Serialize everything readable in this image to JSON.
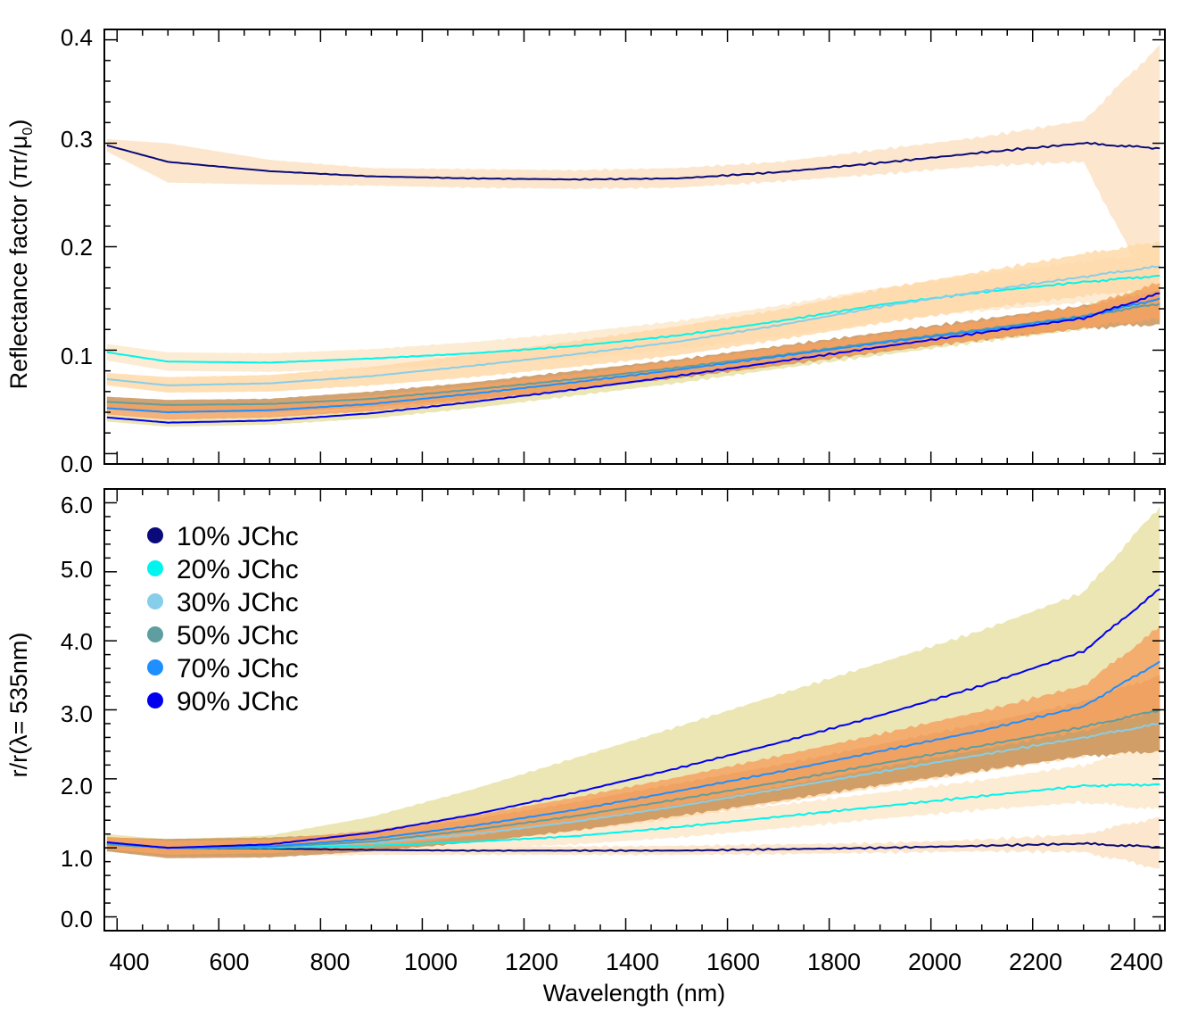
{
  "figure": {
    "xlabel": "Wavelength (nm)",
    "xticks": [
      "400",
      "600",
      "800",
      "1000",
      "1200",
      "1400",
      "1600",
      "1800",
      "2000",
      "2200",
      "2400"
    ]
  },
  "panels": {
    "top": {
      "ylabel_main": "Reflectance factor (πr/μ",
      "ylabel_sub": "0",
      "ylabel_end": ")",
      "yticks": [
        "0.0",
        "0.1",
        "0.2",
        "0.3",
        "0.4"
      ]
    },
    "bottom": {
      "ylabel": "r/r(λ= 535nm)",
      "yticks": [
        "0.0",
        "1.0",
        "2.0",
        "3.0",
        "4.0",
        "5.0",
        "6.0"
      ]
    }
  },
  "legend": {
    "items": [
      {
        "label": "10% JChc",
        "color": "#0a0a7a"
      },
      {
        "label": "20% JChc",
        "color": "#00f5ee"
      },
      {
        "label": "30% JChc",
        "color": "#87ceeb"
      },
      {
        "label": "50% JChc",
        "color": "#5f9ea0"
      },
      {
        "label": "70% JChc",
        "color": "#1e8fff"
      },
      {
        "label": "90% JChc",
        "color": "#0000ee"
      }
    ]
  },
  "chart_data": [
    {
      "type": "line",
      "title": "",
      "xlabel": "Wavelength (nm)",
      "ylabel": "Reflectance factor (πr/μ0)",
      "xlim": [
        375,
        2460
      ],
      "ylim": [
        -0.01,
        0.41
      ],
      "x": [
        380,
        500,
        700,
        900,
        1100,
        1300,
        1500,
        1700,
        1900,
        2100,
        2300,
        2450
      ],
      "series": [
        {
          "name": "10% JChc",
          "color": "#0a0a7a",
          "values": [
            0.298,
            0.282,
            0.273,
            0.268,
            0.266,
            0.265,
            0.266,
            0.272,
            0.281,
            0.291,
            0.3,
            0.295
          ],
          "band_lower": [
            0.292,
            0.262,
            0.26,
            0.259,
            0.257,
            0.256,
            0.257,
            0.263,
            0.27,
            0.278,
            0.282,
            0.14
          ],
          "band_upper": [
            0.304,
            0.3,
            0.284,
            0.276,
            0.275,
            0.274,
            0.276,
            0.282,
            0.294,
            0.306,
            0.322,
            0.395
          ],
          "band_color": "#fbe3c6"
        },
        {
          "name": "20% JChc",
          "color": "#00f5ee",
          "values": [
            0.098,
            0.089,
            0.088,
            0.092,
            0.097,
            0.104,
            0.114,
            0.128,
            0.144,
            0.156,
            0.166,
            0.172
          ],
          "band_lower": [
            0.09,
            0.08,
            0.079,
            0.082,
            0.086,
            0.092,
            0.101,
            0.113,
            0.128,
            0.138,
            0.146,
            0.15
          ],
          "band_upper": [
            0.106,
            0.098,
            0.097,
            0.101,
            0.108,
            0.117,
            0.128,
            0.143,
            0.16,
            0.173,
            0.186,
            0.194
          ],
          "band_color": "#fde9cc"
        },
        {
          "name": "30% JChc",
          "color": "#87ceeb",
          "values": [
            0.072,
            0.066,
            0.068,
            0.075,
            0.085,
            0.096,
            0.108,
            0.124,
            0.142,
            0.157,
            0.171,
            0.181
          ],
          "band_lower": [
            0.066,
            0.059,
            0.06,
            0.066,
            0.074,
            0.084,
            0.095,
            0.11,
            0.126,
            0.14,
            0.152,
            0.16
          ],
          "band_upper": [
            0.078,
            0.074,
            0.076,
            0.084,
            0.096,
            0.109,
            0.123,
            0.139,
            0.159,
            0.176,
            0.193,
            0.205
          ],
          "band_color": "#ffd9a8"
        },
        {
          "name": "50% JChc",
          "color": "#5f9ea0",
          "values": [
            0.05,
            0.047,
            0.048,
            0.053,
            0.062,
            0.072,
            0.083,
            0.095,
            0.108,
            0.12,
            0.133,
            0.145
          ],
          "band_lower": [
            0.045,
            0.04,
            0.04,
            0.045,
            0.053,
            0.062,
            0.073,
            0.085,
            0.098,
            0.11,
            0.121,
            0.125
          ],
          "band_upper": [
            0.055,
            0.052,
            0.053,
            0.06,
            0.069,
            0.08,
            0.091,
            0.104,
            0.117,
            0.13,
            0.143,
            0.158
          ],
          "band_color": "#c9935a"
        },
        {
          "name": "70% JChc",
          "color": "#1e8fff",
          "values": [
            0.044,
            0.04,
            0.042,
            0.048,
            0.058,
            0.069,
            0.081,
            0.094,
            0.107,
            0.119,
            0.132,
            0.15
          ],
          "band_lower": [
            0.038,
            0.033,
            0.035,
            0.041,
            0.051,
            0.062,
            0.074,
            0.086,
            0.099,
            0.11,
            0.122,
            0.13
          ],
          "band_upper": [
            0.05,
            0.047,
            0.049,
            0.056,
            0.066,
            0.077,
            0.089,
            0.102,
            0.115,
            0.128,
            0.142,
            0.165
          ],
          "band_color": "#f5a262"
        },
        {
          "name": "90% JChc",
          "color": "#0000ee",
          "values": [
            0.035,
            0.03,
            0.032,
            0.039,
            0.05,
            0.062,
            0.075,
            0.089,
            0.103,
            0.117,
            0.131,
            0.155
          ],
          "band_lower": [
            0.031,
            0.026,
            0.028,
            0.034,
            0.044,
            0.056,
            0.068,
            0.082,
            0.095,
            0.108,
            0.12,
            0.135
          ],
          "band_upper": [
            0.039,
            0.034,
            0.036,
            0.044,
            0.056,
            0.068,
            0.082,
            0.096,
            0.111,
            0.126,
            0.142,
            0.165
          ],
          "band_color": "#e8e2a6"
        }
      ]
    },
    {
      "type": "line",
      "title": "",
      "xlabel": "Wavelength (nm)",
      "ylabel": "r/r(λ= 535nm)",
      "xlim": [
        375,
        2460
      ],
      "ylim": [
        -0.2,
        6.2
      ],
      "x": [
        380,
        500,
        700,
        900,
        1100,
        1300,
        1500,
        1700,
        1900,
        2100,
        2300,
        2450
      ],
      "series": [
        {
          "name": "10% JChc",
          "color": "#0a0a7a",
          "values": [
            1.05,
            1.0,
            0.99,
            0.97,
            0.96,
            0.96,
            0.96,
            0.98,
            1.0,
            1.03,
            1.06,
            1.01
          ],
          "band_lower": [
            0.95,
            0.88,
            0.88,
            0.9,
            0.9,
            0.9,
            0.9,
            0.91,
            0.93,
            0.95,
            0.94,
            0.7
          ],
          "band_upper": [
            1.15,
            1.08,
            1.06,
            1.04,
            1.02,
            1.02,
            1.03,
            1.05,
            1.07,
            1.12,
            1.2,
            1.45
          ],
          "band_color": "#fbe3c6"
        },
        {
          "name": "20% JChc",
          "color": "#00f5ee",
          "values": [
            1.05,
            1.0,
            1.0,
            1.03,
            1.09,
            1.17,
            1.3,
            1.45,
            1.6,
            1.75,
            1.9,
            1.92
          ],
          "band_lower": [
            0.95,
            0.9,
            0.92,
            0.95,
            0.99,
            1.05,
            1.15,
            1.28,
            1.42,
            1.55,
            1.66,
            1.55
          ],
          "band_upper": [
            1.15,
            1.1,
            1.1,
            1.12,
            1.2,
            1.3,
            1.45,
            1.62,
            1.8,
            1.98,
            2.2,
            2.5
          ],
          "band_color": "#fde9cc"
        },
        {
          "name": "30% JChc",
          "color": "#87ceeb",
          "values": [
            1.05,
            1.0,
            1.01,
            1.07,
            1.2,
            1.38,
            1.6,
            1.85,
            2.1,
            2.35,
            2.6,
            2.8
          ],
          "band_lower": [
            0.95,
            0.9,
            0.92,
            0.97,
            1.08,
            1.24,
            1.43,
            1.65,
            1.88,
            2.1,
            2.32,
            2.4
          ],
          "band_upper": [
            1.15,
            1.1,
            1.1,
            1.17,
            1.33,
            1.54,
            1.79,
            2.06,
            2.34,
            2.62,
            2.9,
            3.3
          ],
          "band_color": "#ffd9a8"
        },
        {
          "name": "50% JChc",
          "color": "#5f9ea0",
          "values": [
            1.05,
            1.0,
            1.01,
            1.09,
            1.26,
            1.46,
            1.7,
            1.95,
            2.22,
            2.48,
            2.75,
            3.0
          ],
          "band_lower": [
            0.95,
            0.85,
            0.86,
            0.95,
            1.08,
            1.25,
            1.46,
            1.68,
            1.91,
            2.12,
            2.33,
            2.4
          ],
          "band_upper": [
            1.15,
            1.13,
            1.15,
            1.21,
            1.42,
            1.66,
            1.93,
            2.2,
            2.5,
            2.8,
            3.12,
            3.5
          ],
          "band_color": "#c9935a"
        },
        {
          "name": "70% JChc",
          "color": "#1e8fff",
          "values": [
            1.07,
            1.0,
            1.02,
            1.13,
            1.32,
            1.55,
            1.82,
            2.1,
            2.4,
            2.7,
            3.05,
            3.7
          ],
          "band_lower": [
            0.98,
            0.9,
            0.92,
            1.01,
            1.17,
            1.38,
            1.62,
            1.88,
            2.16,
            2.43,
            2.7,
            3.0
          ],
          "band_upper": [
            1.16,
            1.1,
            1.12,
            1.25,
            1.47,
            1.73,
            2.02,
            2.33,
            2.65,
            2.98,
            3.35,
            4.2
          ],
          "band_color": "#f5a262"
        },
        {
          "name": "90% JChc",
          "color": "#0000ee",
          "values": [
            1.08,
            1.0,
            1.05,
            1.22,
            1.48,
            1.8,
            2.15,
            2.52,
            2.92,
            3.35,
            3.85,
            4.75
          ],
          "band_lower": [
            0.97,
            0.88,
            0.9,
            1.0,
            1.15,
            1.35,
            1.55,
            1.78,
            2.02,
            2.28,
            2.55,
            2.85
          ],
          "band_upper": [
            1.2,
            1.12,
            1.18,
            1.45,
            1.85,
            2.3,
            2.75,
            3.22,
            3.68,
            4.15,
            4.7,
            5.95
          ],
          "band_color": "#e8e2a6"
        }
      ]
    }
  ]
}
